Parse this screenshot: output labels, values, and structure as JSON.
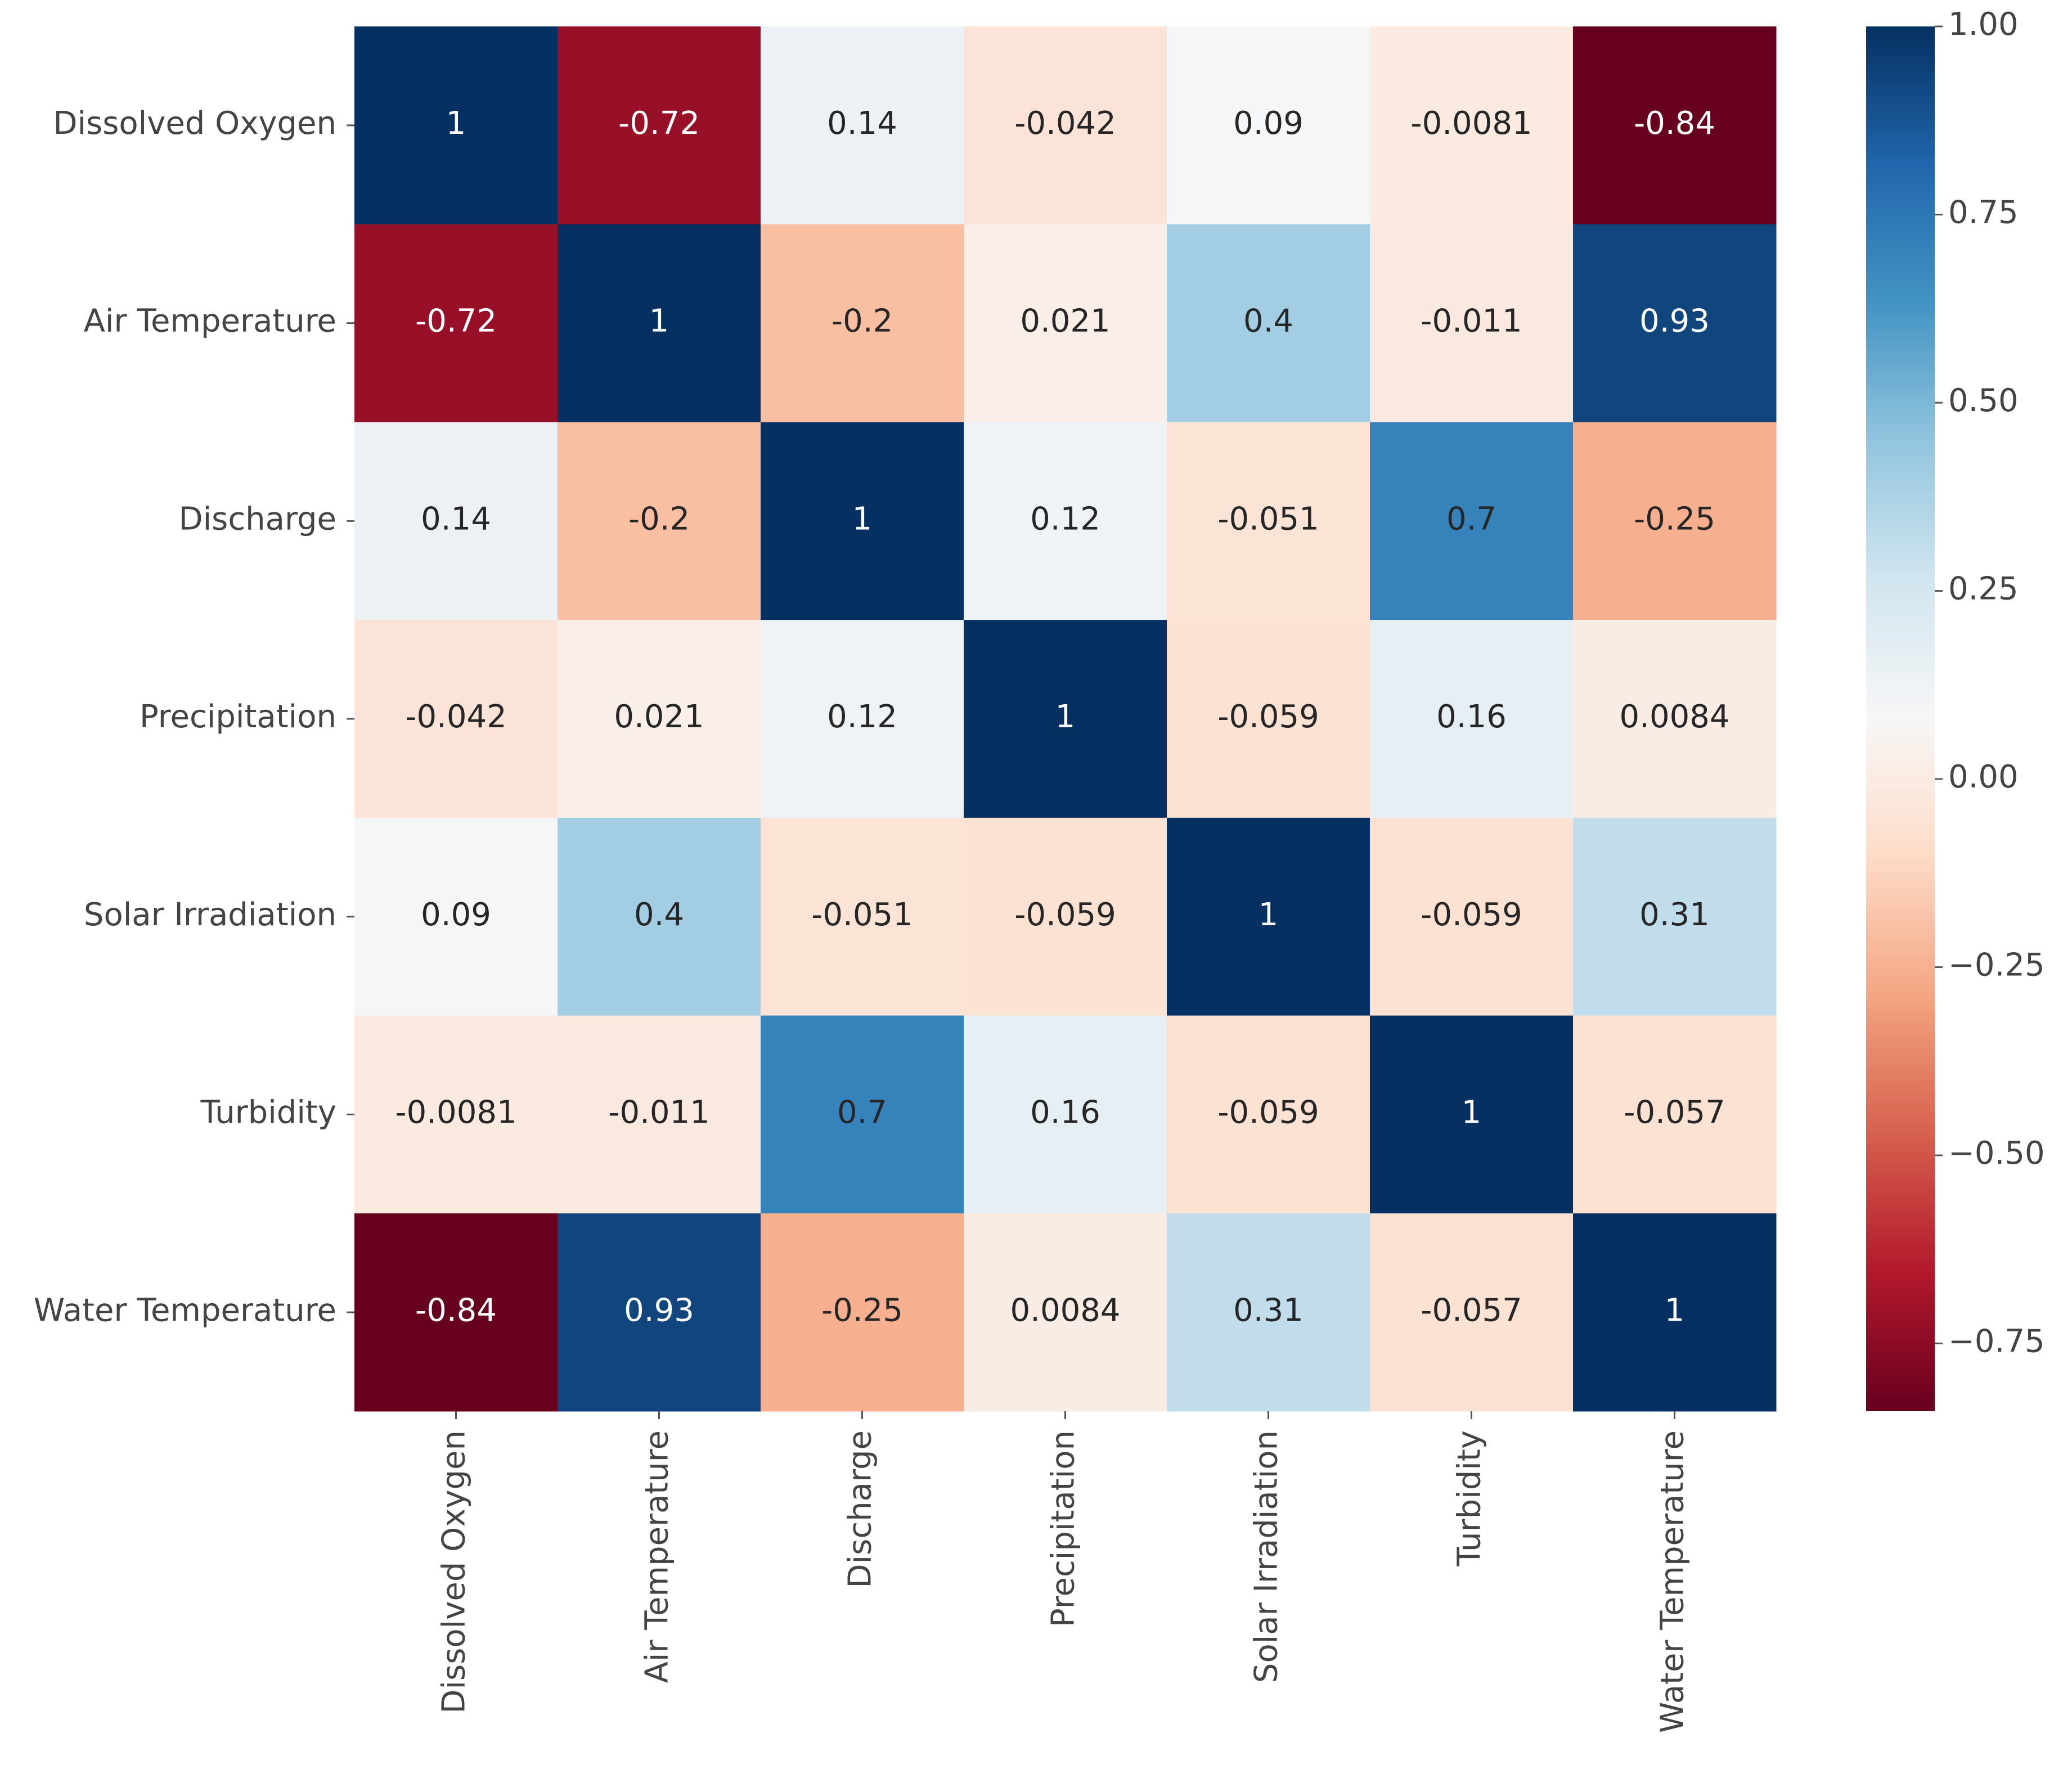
{
  "chart_data": {
    "type": "heatmap",
    "categories": [
      "Dissolved Oxygen",
      "Air Temperature",
      "Discharge",
      "Precipitation",
      "Solar Irradiation",
      "Turbidity",
      "Water Temperature"
    ],
    "values": [
      [
        1,
        -0.72,
        0.14,
        -0.042,
        0.09,
        -0.0081,
        -0.84
      ],
      [
        -0.72,
        1,
        -0.2,
        0.021,
        0.4,
        -0.011,
        0.93
      ],
      [
        0.14,
        -0.2,
        1,
        0.12,
        -0.051,
        0.7,
        -0.25
      ],
      [
        -0.042,
        0.021,
        0.12,
        1,
        -0.059,
        0.16,
        0.0084
      ],
      [
        0.09,
        0.4,
        -0.051,
        -0.059,
        1,
        -0.059,
        0.31
      ],
      [
        -0.0081,
        -0.011,
        0.7,
        0.16,
        -0.059,
        1,
        -0.057
      ],
      [
        -0.84,
        0.93,
        -0.25,
        0.0084,
        0.31,
        -0.057,
        1
      ]
    ],
    "zlim": [
      -0.84,
      1
    ],
    "zticks": [
      {
        "value": -0.75,
        "label": "−0.75"
      },
      {
        "value": -0.5,
        "label": "−0.50"
      },
      {
        "value": -0.25,
        "label": "−0.25"
      },
      {
        "value": 0,
        "label": "0.00"
      },
      0.25,
      {
        "value": 0.5,
        "label": "0.50"
      },
      0.75,
      {
        "value": 1,
        "label": "1.00"
      }
    ],
    "colormap": [
      "#67001f",
      "#b2182b",
      "#d6604d",
      "#f4a582",
      "#fddbc7",
      "#f7f7f7",
      "#d1e5f0",
      "#92c5de",
      "#4393c3",
      "#2166ac",
      "#053061"
    ]
  }
}
